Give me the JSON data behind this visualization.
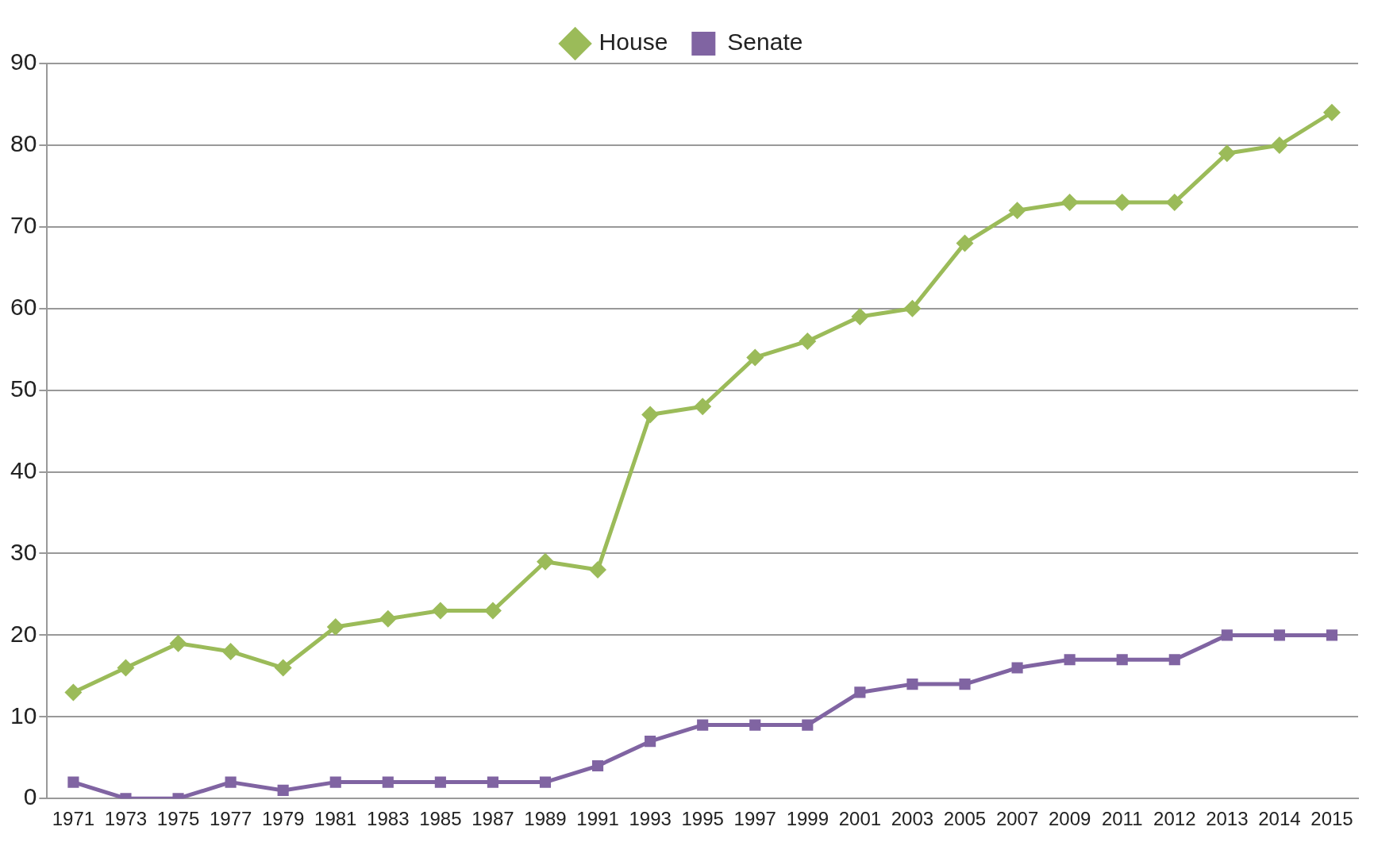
{
  "chart_data": {
    "type": "line",
    "categories": [
      "1971",
      "1973",
      "1975",
      "1977",
      "1979",
      "1981",
      "1983",
      "1985",
      "1987",
      "1989",
      "1991",
      "1993",
      "1995",
      "1997",
      "1999",
      "2001",
      "2003",
      "2005",
      "2007",
      "2009",
      "2011",
      "2012",
      "2013",
      "2014",
      "2015"
    ],
    "series": [
      {
        "name": "House",
        "color": "#9bbb59",
        "marker": "diamond",
        "values": [
          13,
          16,
          19,
          18,
          16,
          21,
          22,
          23,
          23,
          29,
          28,
          47,
          48,
          54,
          56,
          59,
          60,
          68,
          72,
          73,
          73,
          73,
          79,
          80,
          84
        ]
      },
      {
        "name": "Senate",
        "color": "#8064a2",
        "marker": "square",
        "values": [
          2,
          0,
          0,
          2,
          1,
          2,
          2,
          2,
          2,
          2,
          4,
          7,
          9,
          9,
          9,
          13,
          14,
          14,
          16,
          17,
          17,
          17,
          20,
          20,
          20
        ]
      }
    ],
    "ylim": [
      0,
      90
    ],
    "yticks": [
      0,
      10,
      20,
      30,
      40,
      50,
      60,
      70,
      80,
      90
    ],
    "grid": "y",
    "legend": "top",
    "line_style": "solid"
  }
}
